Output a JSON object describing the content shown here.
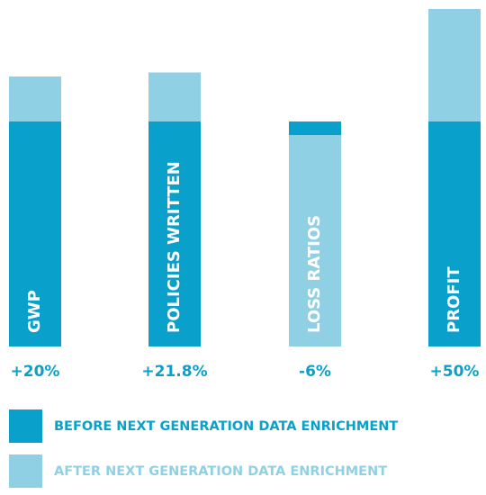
{
  "chart_data": {
    "type": "bar",
    "categories": [
      "GWP",
      "POLICIES WRITTEN",
      "LOSS RATIOS",
      "PROFIT"
    ],
    "values": [
      20,
      21.8,
      -6,
      50
    ],
    "value_labels": [
      "+20%",
      "+21.8%",
      "-6%",
      "+50%"
    ],
    "legend": [
      {
        "name": "BEFORE NEXT GENERATION DATA ENRICHMENT",
        "color": "#0aa0cc"
      },
      {
        "name": "AFTER NEXT GENERATION DATA ENRICHMENT",
        "color": "#8fd0e4"
      }
    ]
  }
}
